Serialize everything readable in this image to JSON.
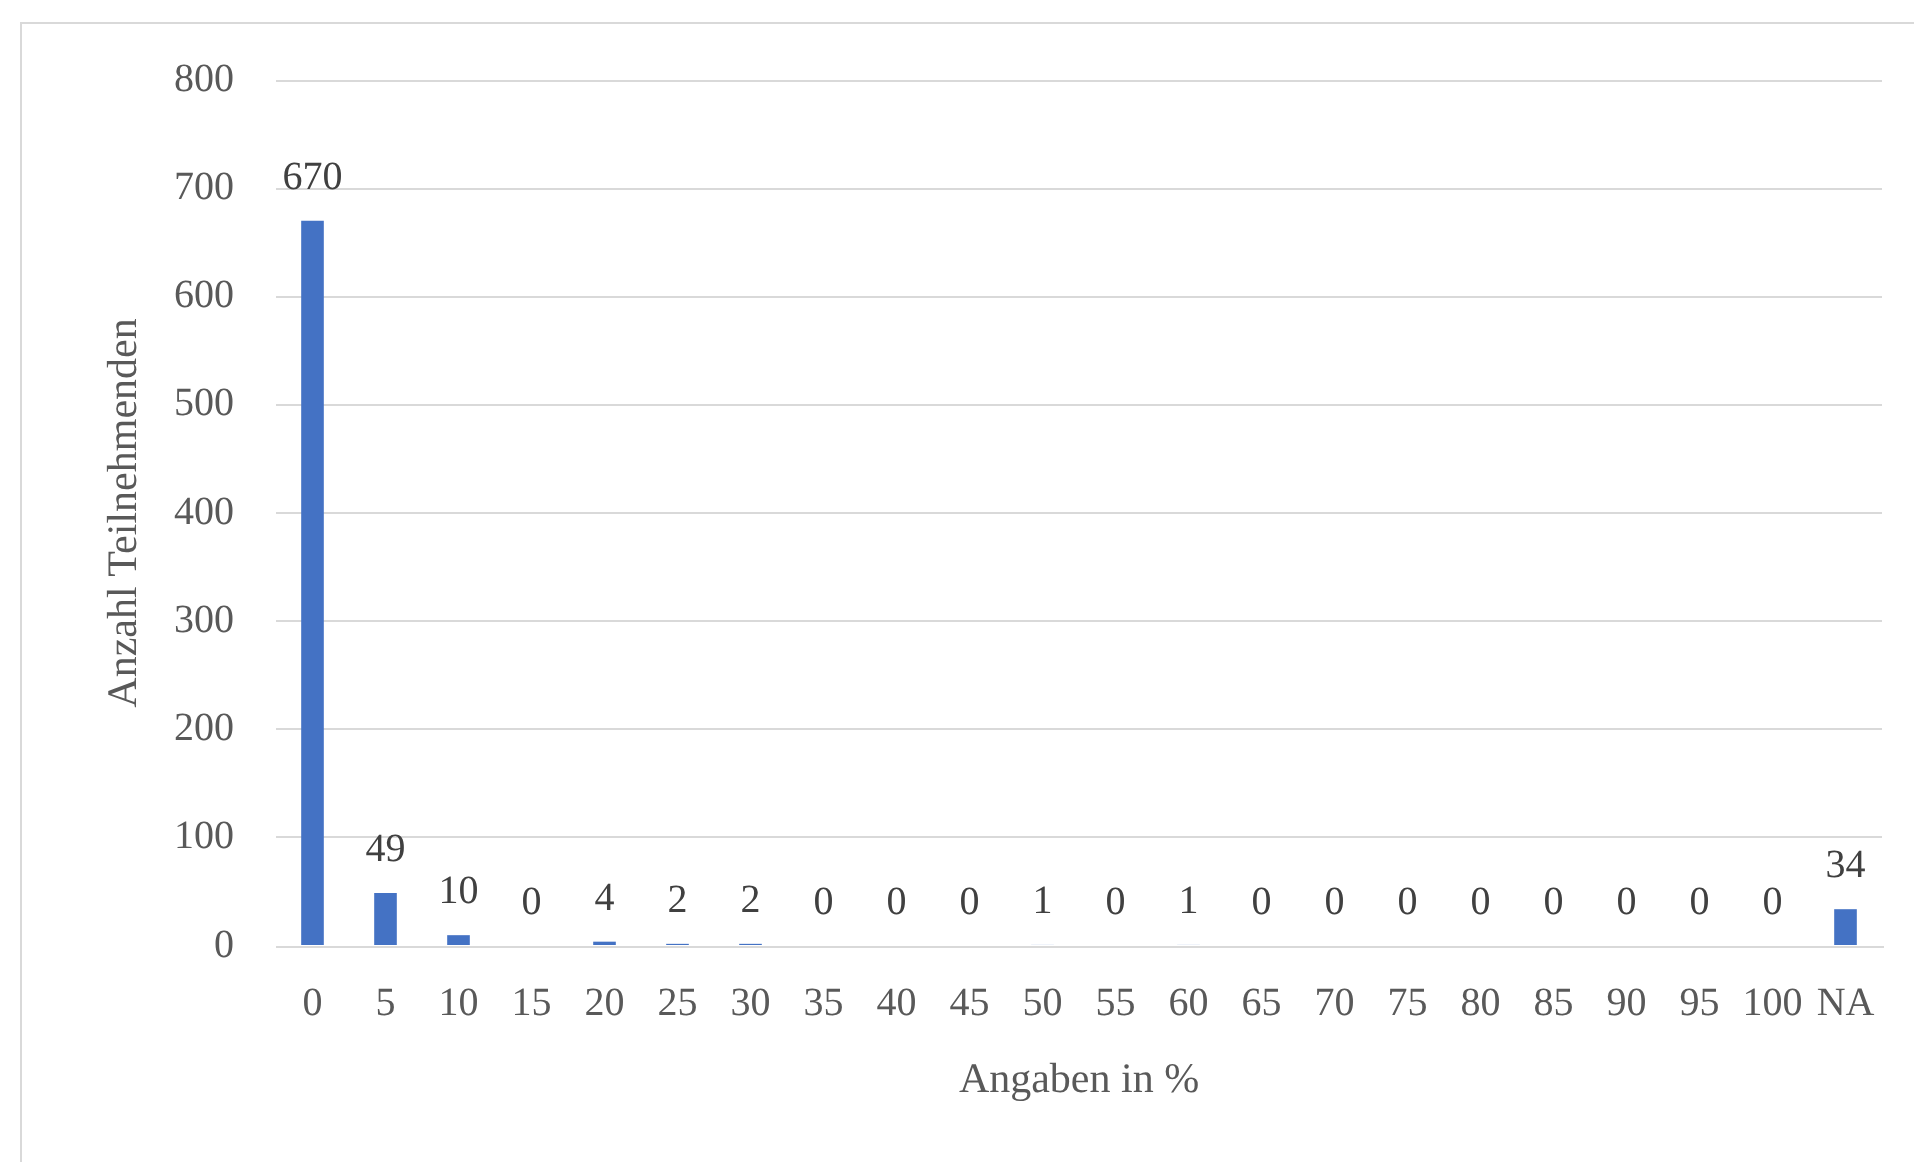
{
  "chart_data": {
    "type": "bar",
    "xlabel": "Angaben in %",
    "ylabel": "Anzahl Teilnehmenden",
    "categories": [
      "0",
      "5",
      "10",
      "15",
      "20",
      "25",
      "30",
      "35",
      "40",
      "45",
      "50",
      "55",
      "60",
      "65",
      "70",
      "75",
      "80",
      "85",
      "90",
      "95",
      "100",
      "NA"
    ],
    "values": [
      670,
      49,
      10,
      0,
      4,
      2,
      2,
      0,
      0,
      0,
      1,
      0,
      1,
      0,
      0,
      0,
      0,
      0,
      0,
      0,
      0,
      34
    ],
    "color": "#4472c4",
    "ylim": [
      0,
      800
    ],
    "yticks": [
      0,
      100,
      200,
      300,
      400,
      500,
      600,
      700,
      800
    ],
    "grid": "y",
    "data_labels": true
  }
}
